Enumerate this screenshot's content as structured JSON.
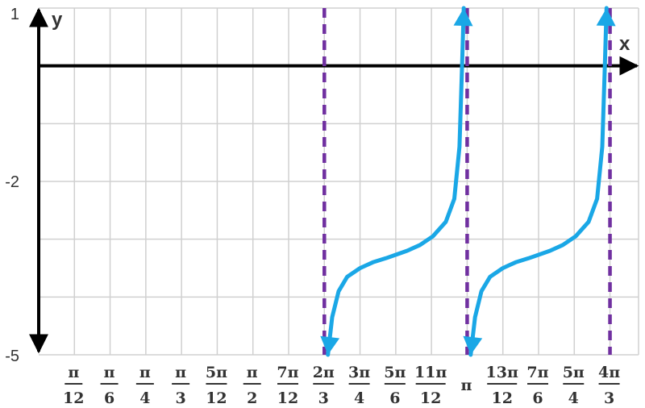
{
  "chart_data": {
    "type": "line",
    "title": "",
    "xlabel": "x",
    "ylabel": "y",
    "ylim": [
      -5,
      1
    ],
    "xlim_multiple_of_pi": [
      0,
      1.4
    ],
    "y_ticks": [
      {
        "value": 1,
        "label": "1"
      },
      {
        "value": -2,
        "label": "-2"
      },
      {
        "value": -5,
        "label": "-5"
      }
    ],
    "x_ticks": [
      {
        "value": 0.08333,
        "num": "π",
        "den": "12"
      },
      {
        "value": 0.16667,
        "num": "π",
        "den": "6"
      },
      {
        "value": 0.25,
        "num": "π",
        "den": "4"
      },
      {
        "value": 0.33333,
        "num": "π",
        "den": "3"
      },
      {
        "value": 0.41667,
        "num": "5π",
        "den": "12"
      },
      {
        "value": 0.5,
        "num": "π",
        "den": "2"
      },
      {
        "value": 0.58333,
        "num": "7π",
        "den": "12"
      },
      {
        "value": 0.66667,
        "num": "2π",
        "den": "3"
      },
      {
        "value": 0.75,
        "num": "3π",
        "den": "4"
      },
      {
        "value": 0.83333,
        "num": "5π",
        "den": "6"
      },
      {
        "value": 0.91667,
        "num": "11π",
        "den": "12"
      },
      {
        "value": 1.0,
        "num": "π",
        "den": ""
      },
      {
        "value": 1.08333,
        "num": "13π",
        "den": "12"
      },
      {
        "value": 1.16667,
        "num": "7π",
        "den": "6"
      },
      {
        "value": 1.25,
        "num": "5π",
        "den": "4"
      },
      {
        "value": 1.33333,
        "num": "4π",
        "den": "3"
      }
    ],
    "asymptotes": [
      0.66667,
      1.0,
      1.33333
    ],
    "series": [
      {
        "values": [
          {
            "x": 0.675,
            "y": -5.0
          },
          {
            "x": 0.685,
            "y": -4.35
          },
          {
            "x": 0.7,
            "y": -3.9
          },
          {
            "x": 0.72,
            "y": -3.65
          },
          {
            "x": 0.75,
            "y": -3.5
          },
          {
            "x": 0.78,
            "y": -3.4
          },
          {
            "x": 0.81,
            "y": -3.33
          },
          {
            "x": 0.8333,
            "y": -3.27
          },
          {
            "x": 0.86,
            "y": -3.2
          },
          {
            "x": 0.89,
            "y": -3.1
          },
          {
            "x": 0.92,
            "y": -2.95
          },
          {
            "x": 0.95,
            "y": -2.7
          },
          {
            "x": 0.97,
            "y": -2.3
          },
          {
            "x": 0.982,
            "y": -1.4
          },
          {
            "x": 0.988,
            "y": 0.0
          },
          {
            "x": 0.992,
            "y": 1.0
          }
        ]
      },
      {
        "values": [
          {
            "x": 1.0083,
            "y": -5.0
          },
          {
            "x": 1.0183,
            "y": -4.35
          },
          {
            "x": 1.0333,
            "y": -3.9
          },
          {
            "x": 1.0533,
            "y": -3.65
          },
          {
            "x": 1.0833,
            "y": -3.5
          },
          {
            "x": 1.1133,
            "y": -3.4
          },
          {
            "x": 1.1433,
            "y": -3.33
          },
          {
            "x": 1.1667,
            "y": -3.27
          },
          {
            "x": 1.1933,
            "y": -3.2
          },
          {
            "x": 1.2233,
            "y": -3.1
          },
          {
            "x": 1.2533,
            "y": -2.95
          },
          {
            "x": 1.2833,
            "y": -2.7
          },
          {
            "x": 1.3033,
            "y": -2.3
          },
          {
            "x": 1.3153,
            "y": -1.4
          },
          {
            "x": 1.3213,
            "y": 0.0
          },
          {
            "x": 1.3253,
            "y": 1.0
          }
        ]
      }
    ],
    "colors": {
      "curve": "#1aa7e6",
      "asymptote": "#7030a0",
      "grid": "#d0d0d0",
      "axis": "#000000"
    },
    "grid": true
  }
}
